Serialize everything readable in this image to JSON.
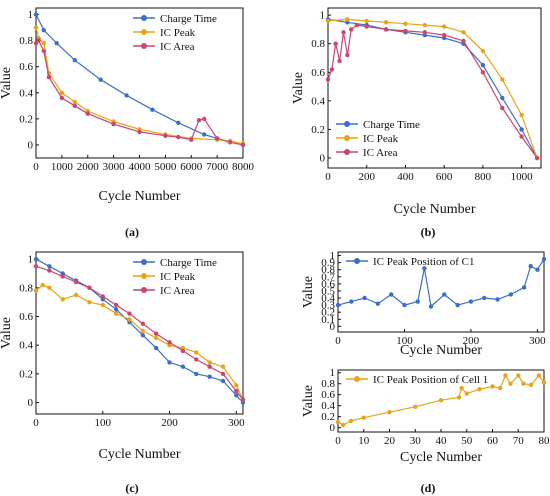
{
  "colors": {
    "charge_time": "#3a6fc8",
    "ic_peak": "#e8a317",
    "ic_area": "#c9476f"
  },
  "panels": [
    {
      "label": "(a)"
    },
    {
      "label": "(b)"
    },
    {
      "label": "(c)"
    },
    {
      "label": "(d)"
    }
  ],
  "chart_data": [
    {
      "id": "a",
      "type": "line",
      "xlabel": "Cycle Number",
      "ylabel": "Value",
      "xlim": [
        0,
        8000
      ],
      "ylim": [
        -0.1,
        1.05
      ],
      "xticks": [
        0,
        1000,
        2000,
        3000,
        4000,
        5000,
        6000,
        7000,
        8000
      ],
      "yticks": [
        0,
        0.2,
        0.4,
        0.6,
        0.8,
        1
      ],
      "legend_position": "top-right",
      "series": [
        {
          "name": "Charge Time",
          "color_key": "charge_time",
          "x": [
            0,
            300,
            800,
            1500,
            2500,
            3500,
            4500,
            5500,
            6500,
            7000
          ],
          "y": [
            1.0,
            0.88,
            0.78,
            0.65,
            0.5,
            0.38,
            0.27,
            0.17,
            0.08,
            0.05
          ]
        },
        {
          "name": "IC Peak",
          "color_key": "ic_peak",
          "x": [
            0,
            100,
            300,
            500,
            1000,
            1500,
            2000,
            3000,
            4000,
            5000,
            6000,
            7000,
            7500,
            8000
          ],
          "y": [
            0.9,
            0.82,
            0.78,
            0.55,
            0.4,
            0.33,
            0.26,
            0.18,
            0.12,
            0.08,
            0.05,
            0.04,
            0.03,
            0.01
          ]
        },
        {
          "name": "IC Area",
          "color_key": "ic_area",
          "x": [
            0,
            100,
            300,
            500,
            1000,
            1500,
            2000,
            3000,
            4000,
            5000,
            5500,
            6000,
            6300,
            6500,
            7000,
            7500,
            8000
          ],
          "y": [
            0.78,
            0.8,
            0.72,
            0.52,
            0.36,
            0.3,
            0.24,
            0.16,
            0.1,
            0.07,
            0.06,
            0.04,
            0.19,
            0.2,
            0.05,
            0.02,
            0.0
          ]
        }
      ]
    },
    {
      "id": "b",
      "type": "line",
      "xlabel": "Cycle Number",
      "ylabel": "Value",
      "xlim": [
        0,
        1100
      ],
      "ylim": [
        -0.07,
        1.05
      ],
      "xticks": [
        0,
        200,
        400,
        600,
        800,
        1000
      ],
      "yticks": [
        0,
        0.2,
        0.4,
        0.6,
        0.8,
        1
      ],
      "legend_position": "bottom-left",
      "series": [
        {
          "name": "Charge Time",
          "color_key": "charge_time",
          "x": [
            0,
            100,
            200,
            300,
            400,
            500,
            600,
            700,
            800,
            900,
            1000,
            1080
          ],
          "y": [
            0.97,
            0.95,
            0.93,
            0.9,
            0.88,
            0.86,
            0.84,
            0.8,
            0.65,
            0.42,
            0.2,
            0.0
          ]
        },
        {
          "name": "IC Peak",
          "color_key": "ic_peak",
          "x": [
            0,
            100,
            200,
            300,
            400,
            500,
            600,
            700,
            800,
            900,
            1000,
            1080
          ],
          "y": [
            0.96,
            0.97,
            0.96,
            0.95,
            0.94,
            0.93,
            0.92,
            0.88,
            0.75,
            0.55,
            0.3,
            0.0
          ]
        },
        {
          "name": "IC Area",
          "color_key": "ic_area",
          "x": [
            0,
            20,
            40,
            60,
            80,
            100,
            120,
            150,
            200,
            300,
            400,
            500,
            600,
            700,
            800,
            900,
            1000,
            1080
          ],
          "y": [
            0.55,
            0.62,
            0.8,
            0.68,
            0.88,
            0.72,
            0.9,
            0.93,
            0.92,
            0.9,
            0.89,
            0.88,
            0.86,
            0.82,
            0.6,
            0.35,
            0.15,
            0.0
          ]
        }
      ]
    },
    {
      "id": "c",
      "type": "line",
      "xlabel": "Cycle Number",
      "ylabel": "Value",
      "xlim": [
        0,
        310
      ],
      "ylim": [
        -0.08,
        1.05
      ],
      "xticks": [
        0,
        100,
        200,
        300
      ],
      "yticks": [
        0,
        0.2,
        0.4,
        0.6,
        0.8,
        1
      ],
      "legend_position": "top-right",
      "series": [
        {
          "name": "Charge Time",
          "color_key": "charge_time",
          "x": [
            0,
            20,
            40,
            60,
            80,
            100,
            120,
            140,
            160,
            180,
            200,
            220,
            240,
            260,
            280,
            300,
            310
          ],
          "y": [
            1.0,
            0.95,
            0.9,
            0.85,
            0.8,
            0.72,
            0.65,
            0.56,
            0.47,
            0.38,
            0.28,
            0.25,
            0.2,
            0.18,
            0.15,
            0.05,
            0.0
          ]
        },
        {
          "name": "IC Peak",
          "color_key": "ic_peak",
          "x": [
            0,
            10,
            20,
            40,
            60,
            80,
            100,
            120,
            140,
            160,
            180,
            200,
            220,
            240,
            260,
            280,
            300,
            310
          ],
          "y": [
            0.78,
            0.82,
            0.8,
            0.72,
            0.75,
            0.7,
            0.68,
            0.62,
            0.58,
            0.5,
            0.45,
            0.4,
            0.38,
            0.35,
            0.28,
            0.25,
            0.12,
            0.02
          ]
        },
        {
          "name": "IC Area",
          "color_key": "ic_area",
          "x": [
            0,
            20,
            40,
            60,
            80,
            100,
            120,
            140,
            160,
            180,
            200,
            220,
            240,
            260,
            280,
            300,
            310
          ],
          "y": [
            0.95,
            0.92,
            0.88,
            0.84,
            0.8,
            0.74,
            0.68,
            0.62,
            0.55,
            0.48,
            0.42,
            0.36,
            0.3,
            0.25,
            0.2,
            0.08,
            0.02
          ]
        }
      ]
    },
    {
      "id": "d1",
      "type": "line",
      "xlabel": "Cycle Number",
      "ylabel": "Value",
      "xlim": [
        0,
        310
      ],
      "ylim": [
        -0.08,
        1.05
      ],
      "xticks": [
        0,
        100,
        200,
        300
      ],
      "yticks": [
        0,
        0.1,
        0.2,
        0.3,
        0.4,
        0.5,
        0.6,
        0.7,
        0.8,
        0.9,
        1
      ],
      "legend_position": "top-left",
      "series": [
        {
          "name": "IC Peak Position of C1",
          "color_key": "charge_time",
          "x": [
            0,
            20,
            40,
            60,
            80,
            100,
            120,
            130,
            140,
            160,
            180,
            200,
            220,
            240,
            260,
            280,
            290,
            300,
            310
          ],
          "y": [
            0.3,
            0.35,
            0.4,
            0.32,
            0.45,
            0.3,
            0.35,
            0.82,
            0.28,
            0.45,
            0.3,
            0.35,
            0.4,
            0.38,
            0.45,
            0.55,
            0.85,
            0.8,
            0.95
          ]
        }
      ]
    },
    {
      "id": "d2",
      "type": "line",
      "xlabel": "Cycle Number",
      "ylabel": "Value",
      "xlim": [
        0,
        80
      ],
      "ylim": [
        -0.08,
        1.05
      ],
      "xticks": [
        0,
        10,
        20,
        30,
        40,
        50,
        60,
        70,
        80
      ],
      "yticks": [
        0,
        0.2,
        0.4,
        0.6,
        0.8,
        1
      ],
      "legend_position": "top-left",
      "series": [
        {
          "name": "IC Peak Position of Cell 1",
          "color_key": "ic_peak",
          "x": [
            0,
            2,
            5,
            10,
            20,
            30,
            40,
            47,
            48,
            50,
            55,
            60,
            63,
            65,
            67,
            70,
            72,
            75,
            78,
            80
          ],
          "y": [
            0.1,
            0.05,
            0.12,
            0.18,
            0.28,
            0.38,
            0.5,
            0.55,
            0.72,
            0.62,
            0.7,
            0.75,
            0.72,
            0.95,
            0.8,
            0.95,
            0.8,
            0.78,
            0.95,
            0.82
          ]
        }
      ]
    }
  ]
}
